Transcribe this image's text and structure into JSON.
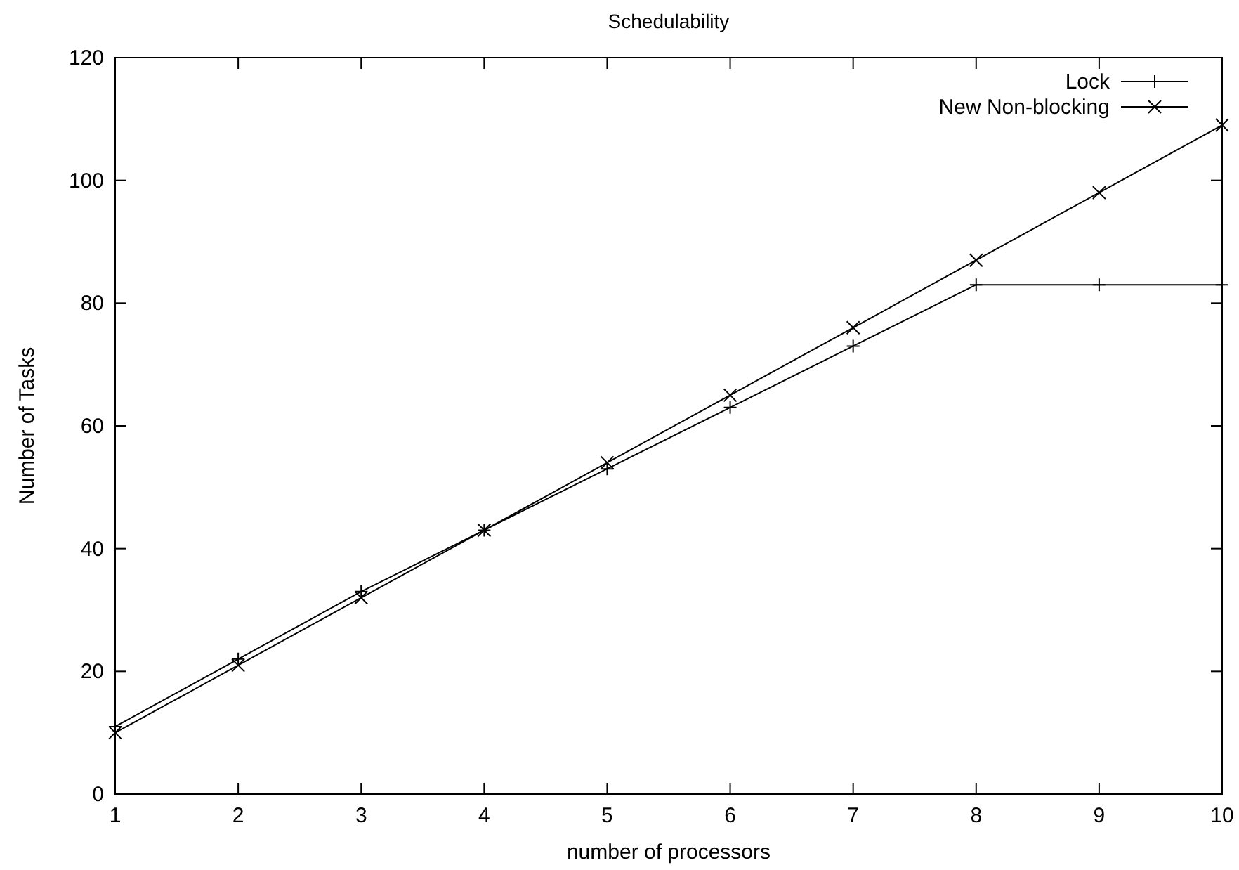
{
  "chart_data": {
    "type": "line",
    "title": "Schedulability",
    "xlabel": "number of processors",
    "ylabel": "Number of Tasks",
    "x": [
      1,
      2,
      3,
      4,
      5,
      6,
      7,
      8,
      9,
      10
    ],
    "series": [
      {
        "name": "Lock",
        "color": "#000000",
        "marker": "plus",
        "values": [
          11,
          22,
          33,
          43,
          53,
          63,
          73,
          83,
          83,
          83
        ]
      },
      {
        "name": "New Non-blocking",
        "color": "#000000",
        "marker": "cross",
        "values": [
          10,
          21,
          32,
          43,
          54,
          65,
          76,
          87,
          98,
          109
        ]
      }
    ],
    "xlim": [
      1,
      10
    ],
    "xticks": [
      1,
      2,
      3,
      4,
      5,
      6,
      7,
      8,
      9,
      10
    ],
    "ylim": [
      0,
      120
    ],
    "yticks": [
      0,
      20,
      40,
      60,
      80,
      100,
      120
    ],
    "grid": false,
    "legend": "top right",
    "line_style": "solid"
  }
}
